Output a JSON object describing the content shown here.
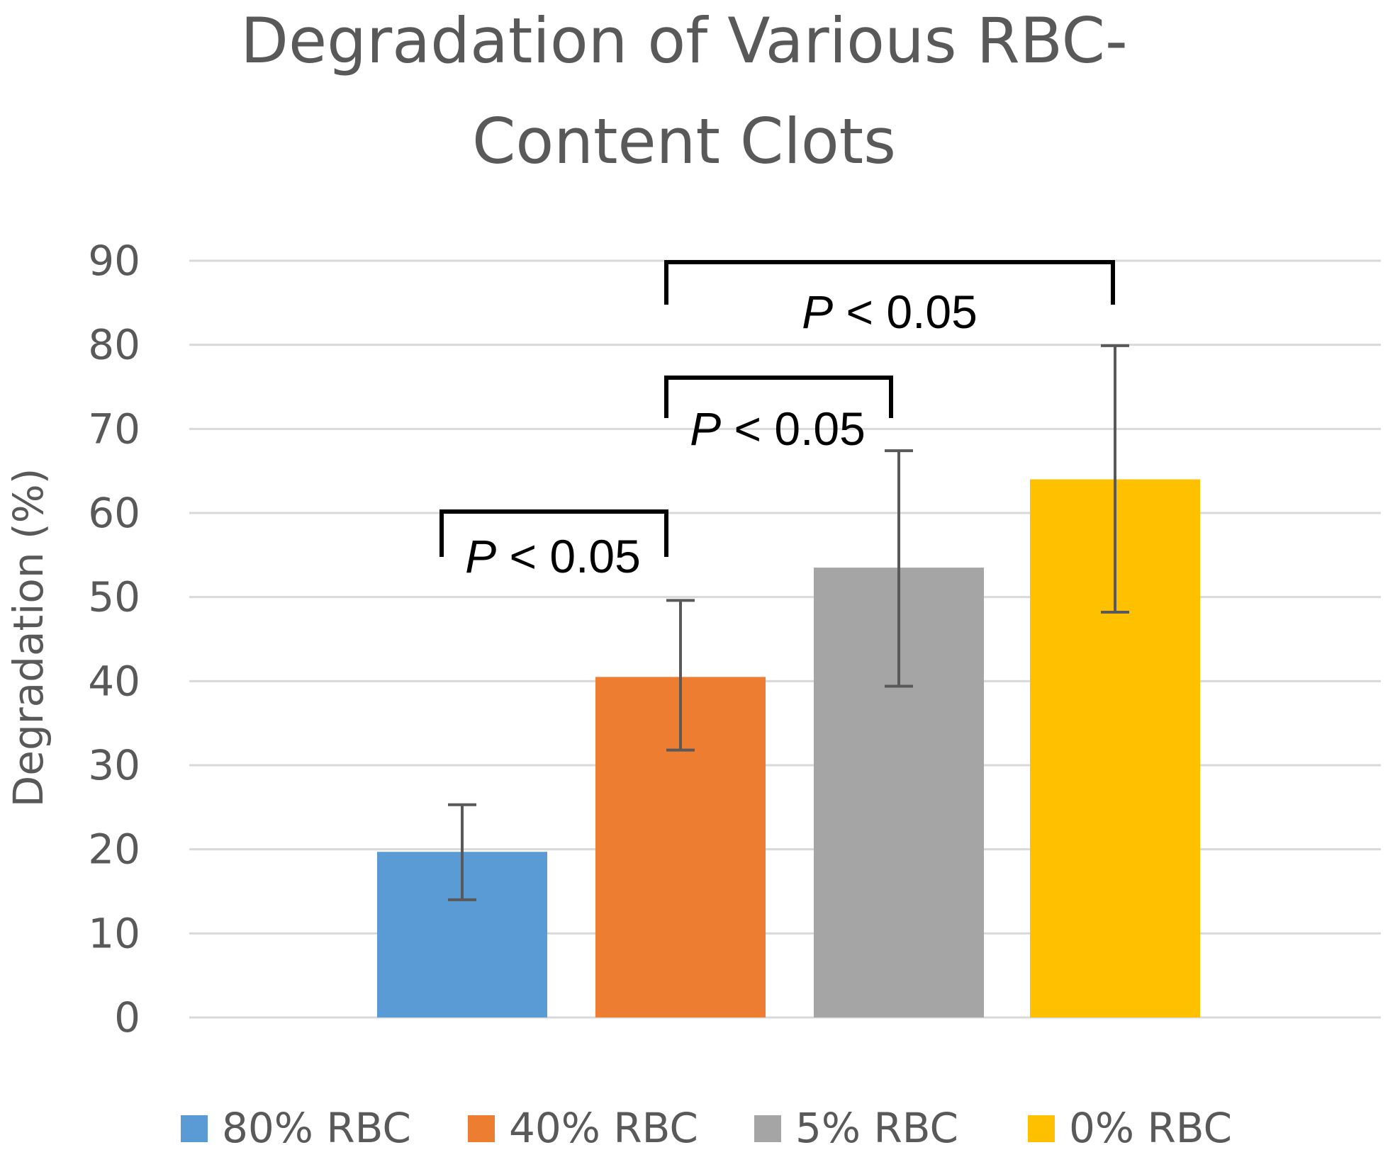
{
  "chart_data": {
    "type": "bar",
    "title_lines": [
      "Degradation of Various RBC-",
      "Content Clots"
    ],
    "ylabel": "Degradation (%)",
    "xlabel": "",
    "ylim": [
      0,
      90
    ],
    "yticks": [
      0,
      10,
      20,
      30,
      40,
      50,
      60,
      70,
      80,
      90
    ],
    "grid": true,
    "legend_position": "bottom",
    "categories": [
      "80% RBC",
      "40% RBC",
      "5% RBC",
      "0% RBC"
    ],
    "values": [
      19.7,
      40.5,
      53.5,
      64.0
    ],
    "error_bars": [
      {
        "low": 14.0,
        "high": 25.3
      },
      {
        "low": 31.8,
        "high": 49.6
      },
      {
        "low": 39.4,
        "high": 67.4
      },
      {
        "low": 48.2,
        "high": 79.9
      }
    ],
    "colors": [
      "#5b9bd5",
      "#ed7d31",
      "#a5a5a5",
      "#ffc000"
    ],
    "significance": [
      {
        "from": 0,
        "to": 1,
        "label_p": "P",
        "label_rest": " < 0.05"
      },
      {
        "from": 1,
        "to": 2,
        "label_p": "P",
        "label_rest": " < 0.05"
      },
      {
        "from": 1,
        "to": 3,
        "label_p": "P",
        "label_rest": " < 0.05"
      }
    ]
  }
}
